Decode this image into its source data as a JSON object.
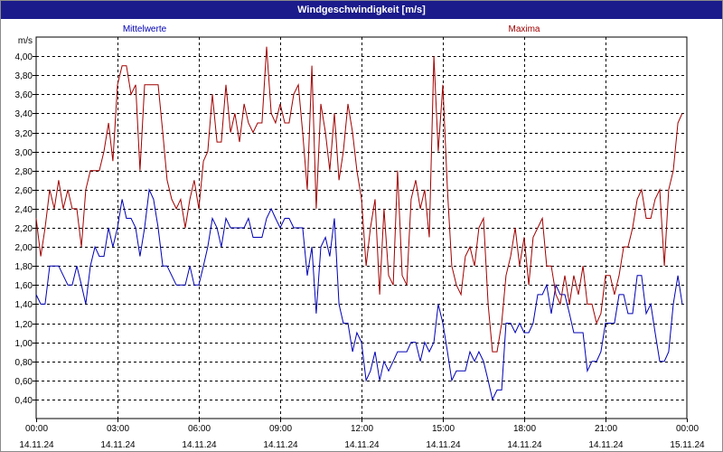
{
  "window": {
    "title": "Windgeschwindigkeit [m/s]"
  },
  "chart_data": {
    "type": "line",
    "title": "Windgeschwindigkeit [m/s]",
    "unit": "m/s",
    "ylim": [
      0.2,
      4.2
    ],
    "y_ticks": [
      0.4,
      0.6,
      0.8,
      1.0,
      1.2,
      1.4,
      1.6,
      1.8,
      2.0,
      2.2,
      2.4,
      2.6,
      2.8,
      3.0,
      3.2,
      3.4,
      3.6,
      3.8,
      4.0
    ],
    "y_tick_labels": [
      "0,40",
      "0,60",
      "0,80",
      "1,00",
      "1,20",
      "1,40",
      "1,60",
      "1,80",
      "2,00",
      "2,20",
      "2,40",
      "2,60",
      "2,80",
      "3,00",
      "3,20",
      "3,40",
      "3,60",
      "3,80",
      "4,00"
    ],
    "xlim_hours": [
      0,
      24
    ],
    "x_ticks": [
      {
        "hour": 0,
        "time": "00:00",
        "date": "14.11.24"
      },
      {
        "hour": 3,
        "time": "03:00",
        "date": "14.11.24"
      },
      {
        "hour": 6,
        "time": "06:00",
        "date": "14.11.24"
      },
      {
        "hour": 9,
        "time": "09:00",
        "date": "14.11.24"
      },
      {
        "hour": 12,
        "time": "12:00",
        "date": "14.11.24"
      },
      {
        "hour": 15,
        "time": "15:00",
        "date": "14.11.24"
      },
      {
        "hour": 18,
        "time": "18:00",
        "date": "14.11.24"
      },
      {
        "hour": 21,
        "time": "21:00",
        "date": "14.11.24"
      },
      {
        "hour": 24,
        "time": "00:00",
        "date": "15.11.24"
      }
    ],
    "grid": true,
    "series": [
      {
        "name": "Mittelwerte",
        "color": "#0000b4",
        "points": [
          [
            0.0,
            1.5
          ],
          [
            0.17,
            1.4
          ],
          [
            0.33,
            1.4
          ],
          [
            0.5,
            1.8
          ],
          [
            0.67,
            1.8
          ],
          [
            0.83,
            1.8
          ],
          [
            1.0,
            1.7
          ],
          [
            1.17,
            1.6
          ],
          [
            1.33,
            1.6
          ],
          [
            1.5,
            1.8
          ],
          [
            1.67,
            1.6
          ],
          [
            1.83,
            1.4
          ],
          [
            2.0,
            1.8
          ],
          [
            2.17,
            2.0
          ],
          [
            2.33,
            1.9
          ],
          [
            2.5,
            1.9
          ],
          [
            2.67,
            2.2
          ],
          [
            2.83,
            2.0
          ],
          [
            3.0,
            2.2
          ],
          [
            3.17,
            2.5
          ],
          [
            3.33,
            2.3
          ],
          [
            3.5,
            2.3
          ],
          [
            3.67,
            2.2
          ],
          [
            3.83,
            1.9
          ],
          [
            4.0,
            2.2
          ],
          [
            4.17,
            2.6
          ],
          [
            4.33,
            2.5
          ],
          [
            4.5,
            2.2
          ],
          [
            4.67,
            1.8
          ],
          [
            4.83,
            1.8
          ],
          [
            5.0,
            1.7
          ],
          [
            5.17,
            1.6
          ],
          [
            5.33,
            1.6
          ],
          [
            5.5,
            1.6
          ],
          [
            5.67,
            1.8
          ],
          [
            5.83,
            1.6
          ],
          [
            6.0,
            1.6
          ],
          [
            6.17,
            1.8
          ],
          [
            6.33,
            2.0
          ],
          [
            6.5,
            2.3
          ],
          [
            6.67,
            2.2
          ],
          [
            6.83,
            2.0
          ],
          [
            7.0,
            2.3
          ],
          [
            7.17,
            2.2
          ],
          [
            7.33,
            2.2
          ],
          [
            7.5,
            2.2
          ],
          [
            7.67,
            2.2
          ],
          [
            7.83,
            2.3
          ],
          [
            8.0,
            2.1
          ],
          [
            8.17,
            2.1
          ],
          [
            8.33,
            2.1
          ],
          [
            8.5,
            2.3
          ],
          [
            8.67,
            2.4
          ],
          [
            8.83,
            2.3
          ],
          [
            9.0,
            2.2
          ],
          [
            9.17,
            2.3
          ],
          [
            9.33,
            2.3
          ],
          [
            9.5,
            2.2
          ],
          [
            9.67,
            2.2
          ],
          [
            9.83,
            2.2
          ],
          [
            10.0,
            1.7
          ],
          [
            10.17,
            2.0
          ],
          [
            10.33,
            1.3
          ],
          [
            10.5,
            2.0
          ],
          [
            10.67,
            2.1
          ],
          [
            10.83,
            1.9
          ],
          [
            11.0,
            2.3
          ],
          [
            11.17,
            1.4
          ],
          [
            11.33,
            1.2
          ],
          [
            11.5,
            1.2
          ],
          [
            11.67,
            0.9
          ],
          [
            11.83,
            1.1
          ],
          [
            12.0,
            1.0
          ],
          [
            12.17,
            0.6
          ],
          [
            12.33,
            0.7
          ],
          [
            12.5,
            0.9
          ],
          [
            12.67,
            0.6
          ],
          [
            12.83,
            0.8
          ],
          [
            13.0,
            0.7
          ],
          [
            13.17,
            0.8
          ],
          [
            13.33,
            0.9
          ],
          [
            13.5,
            0.9
          ],
          [
            13.67,
            0.9
          ],
          [
            13.83,
            1.0
          ],
          [
            14.0,
            1.0
          ],
          [
            14.17,
            0.8
          ],
          [
            14.33,
            1.0
          ],
          [
            14.5,
            0.9
          ],
          [
            14.67,
            1.0
          ],
          [
            14.83,
            1.4
          ],
          [
            15.0,
            1.2
          ],
          [
            15.17,
            0.9
          ],
          [
            15.33,
            0.6
          ],
          [
            15.5,
            0.7
          ],
          [
            15.67,
            0.7
          ],
          [
            15.83,
            0.7
          ],
          [
            16.0,
            0.9
          ],
          [
            16.17,
            0.8
          ],
          [
            16.33,
            0.9
          ],
          [
            16.5,
            0.8
          ],
          [
            16.67,
            0.6
          ],
          [
            16.83,
            0.4
          ],
          [
            17.0,
            0.5
          ],
          [
            17.17,
            0.5
          ],
          [
            17.33,
            1.2
          ],
          [
            17.5,
            1.2
          ],
          [
            17.67,
            1.1
          ],
          [
            17.83,
            1.2
          ],
          [
            18.0,
            1.1
          ],
          [
            18.17,
            1.1
          ],
          [
            18.33,
            1.2
          ],
          [
            18.5,
            1.5
          ],
          [
            18.67,
            1.5
          ],
          [
            18.83,
            1.6
          ],
          [
            19.0,
            1.3
          ],
          [
            19.17,
            1.6
          ],
          [
            19.33,
            1.5
          ],
          [
            19.5,
            1.5
          ],
          [
            19.67,
            1.3
          ],
          [
            19.83,
            1.1
          ],
          [
            20.0,
            1.1
          ],
          [
            20.17,
            1.1
          ],
          [
            20.33,
            0.7
          ],
          [
            20.5,
            0.8
          ],
          [
            20.67,
            0.8
          ],
          [
            20.83,
            0.9
          ],
          [
            21.0,
            1.2
          ],
          [
            21.17,
            1.2
          ],
          [
            21.33,
            1.2
          ],
          [
            21.5,
            1.5
          ],
          [
            21.67,
            1.5
          ],
          [
            21.83,
            1.3
          ],
          [
            22.0,
            1.3
          ],
          [
            22.17,
            1.7
          ],
          [
            22.33,
            1.7
          ],
          [
            22.5,
            1.3
          ],
          [
            22.67,
            1.4
          ],
          [
            22.83,
            1.1
          ],
          [
            23.0,
            0.8
          ],
          [
            23.17,
            0.8
          ],
          [
            23.33,
            0.9
          ],
          [
            23.5,
            1.4
          ],
          [
            23.67,
            1.7
          ],
          [
            23.83,
            1.4
          ]
        ]
      },
      {
        "name": "Maxima",
        "color": "#a00000",
        "points": [
          [
            0.0,
            2.3
          ],
          [
            0.17,
            1.9
          ],
          [
            0.33,
            2.2
          ],
          [
            0.5,
            2.6
          ],
          [
            0.67,
            2.4
          ],
          [
            0.83,
            2.7
          ],
          [
            1.0,
            2.4
          ],
          [
            1.17,
            2.6
          ],
          [
            1.33,
            2.4
          ],
          [
            1.5,
            2.4
          ],
          [
            1.67,
            2.0
          ],
          [
            1.83,
            2.6
          ],
          [
            2.0,
            2.8
          ],
          [
            2.17,
            2.8
          ],
          [
            2.33,
            2.8
          ],
          [
            2.5,
            3.0
          ],
          [
            2.67,
            3.3
          ],
          [
            2.83,
            2.9
          ],
          [
            3.0,
            3.7
          ],
          [
            3.17,
            3.9
          ],
          [
            3.33,
            3.9
          ],
          [
            3.5,
            3.6
          ],
          [
            3.67,
            3.7
          ],
          [
            3.83,
            2.8
          ],
          [
            4.0,
            3.7
          ],
          [
            4.17,
            3.7
          ],
          [
            4.33,
            3.7
          ],
          [
            4.5,
            3.7
          ],
          [
            4.67,
            3.2
          ],
          [
            4.83,
            2.7
          ],
          [
            5.0,
            2.5
          ],
          [
            5.17,
            2.4
          ],
          [
            5.33,
            2.5
          ],
          [
            5.5,
            2.2
          ],
          [
            5.67,
            2.5
          ],
          [
            5.83,
            2.7
          ],
          [
            6.0,
            2.4
          ],
          [
            6.17,
            2.9
          ],
          [
            6.33,
            3.0
          ],
          [
            6.5,
            3.6
          ],
          [
            6.67,
            3.1
          ],
          [
            6.83,
            3.1
          ],
          [
            7.0,
            3.7
          ],
          [
            7.17,
            3.2
          ],
          [
            7.33,
            3.4
          ],
          [
            7.5,
            3.1
          ],
          [
            7.67,
            3.5
          ],
          [
            7.83,
            3.3
          ],
          [
            8.0,
            3.2
          ],
          [
            8.17,
            3.3
          ],
          [
            8.33,
            3.3
          ],
          [
            8.5,
            4.1
          ],
          [
            8.67,
            3.4
          ],
          [
            8.83,
            3.3
          ],
          [
            9.0,
            3.5
          ],
          [
            9.17,
            3.3
          ],
          [
            9.33,
            3.3
          ],
          [
            9.5,
            3.6
          ],
          [
            9.67,
            3.7
          ],
          [
            9.83,
            3.2
          ],
          [
            10.0,
            2.6
          ],
          [
            10.17,
            3.9
          ],
          [
            10.33,
            2.4
          ],
          [
            10.5,
            3.5
          ],
          [
            10.67,
            3.2
          ],
          [
            10.83,
            2.8
          ],
          [
            11.0,
            3.4
          ],
          [
            11.17,
            2.7
          ],
          [
            11.33,
            3.0
          ],
          [
            11.5,
            3.5
          ],
          [
            11.67,
            3.2
          ],
          [
            11.83,
            2.8
          ],
          [
            12.0,
            2.5
          ],
          [
            12.17,
            1.8
          ],
          [
            12.33,
            2.2
          ],
          [
            12.5,
            2.5
          ],
          [
            12.67,
            1.5
          ],
          [
            12.83,
            2.4
          ],
          [
            13.0,
            1.7
          ],
          [
            13.17,
            1.6
          ],
          [
            13.33,
            2.8
          ],
          [
            13.5,
            1.7
          ],
          [
            13.67,
            1.6
          ],
          [
            13.83,
            2.5
          ],
          [
            14.0,
            2.7
          ],
          [
            14.17,
            2.4
          ],
          [
            14.33,
            2.6
          ],
          [
            14.5,
            2.1
          ],
          [
            14.67,
            4.0
          ],
          [
            14.83,
            3.0
          ],
          [
            15.0,
            3.7
          ],
          [
            15.17,
            2.6
          ],
          [
            15.33,
            1.8
          ],
          [
            15.5,
            1.6
          ],
          [
            15.67,
            1.5
          ],
          [
            15.83,
            1.9
          ],
          [
            16.0,
            2.0
          ],
          [
            16.17,
            1.8
          ],
          [
            16.33,
            2.2
          ],
          [
            16.5,
            2.3
          ],
          [
            16.67,
            1.4
          ],
          [
            16.83,
            0.9
          ],
          [
            17.0,
            0.9
          ],
          [
            17.17,
            1.2
          ],
          [
            17.33,
            1.7
          ],
          [
            17.5,
            1.9
          ],
          [
            17.67,
            2.2
          ],
          [
            17.83,
            1.8
          ],
          [
            18.0,
            2.1
          ],
          [
            18.17,
            1.6
          ],
          [
            18.33,
            2.1
          ],
          [
            18.5,
            2.2
          ],
          [
            18.67,
            2.3
          ],
          [
            18.83,
            1.8
          ],
          [
            19.0,
            1.8
          ],
          [
            19.17,
            1.5
          ],
          [
            19.33,
            1.4
          ],
          [
            19.5,
            1.7
          ],
          [
            19.67,
            1.4
          ],
          [
            19.83,
            1.7
          ],
          [
            20.0,
            1.5
          ],
          [
            20.17,
            1.8
          ],
          [
            20.33,
            1.4
          ],
          [
            20.5,
            1.4
          ],
          [
            20.67,
            1.2
          ],
          [
            20.83,
            1.3
          ],
          [
            21.0,
            1.7
          ],
          [
            21.17,
            1.7
          ],
          [
            21.33,
            1.5
          ],
          [
            21.5,
            1.7
          ],
          [
            21.67,
            2.0
          ],
          [
            21.83,
            2.0
          ],
          [
            22.0,
            2.2
          ],
          [
            22.17,
            2.5
          ],
          [
            22.33,
            2.6
          ],
          [
            22.5,
            2.3
          ],
          [
            22.67,
            2.3
          ],
          [
            22.83,
            2.5
          ],
          [
            23.0,
            2.6
          ],
          [
            23.17,
            1.8
          ],
          [
            23.33,
            2.6
          ],
          [
            23.5,
            2.8
          ],
          [
            23.67,
            3.3
          ],
          [
            23.83,
            3.4
          ]
        ]
      }
    ]
  }
}
